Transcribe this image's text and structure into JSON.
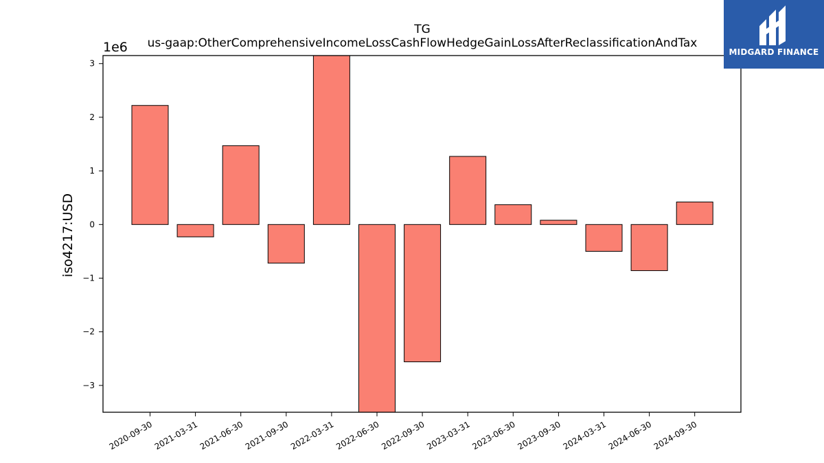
{
  "chart_data": {
    "type": "bar",
    "title": "TG",
    "subtitle": "us-gaap:OtherComprehensiveIncomeLossCashFlowHedgeGainLossAfterReclassificationAndTax",
    "ylabel": "iso4217:USD",
    "scale_label": "1e6",
    "categories": [
      "2020-09-30",
      "2021-03-31",
      "2021-06-30",
      "2021-09-30",
      "2022-03-31",
      "2022-06-30",
      "2022-09-30",
      "2023-03-31",
      "2023-06-30",
      "2023-09-30",
      "2024-03-31",
      "2024-06-30",
      "2024-09-30"
    ],
    "values": [
      2220000,
      -230000,
      1470000,
      -720000,
      3300000,
      -3700000,
      -2560000,
      1270000,
      370000,
      80000,
      -500000,
      -860000,
      420000
    ],
    "ylim": [
      -3.5,
      3.15
    ],
    "yticks": [
      -3,
      -2,
      -1,
      0,
      1,
      2,
      3
    ],
    "ytick_labels": [
      "−3",
      "−2",
      "−1",
      "0",
      "1",
      "2",
      "3"
    ],
    "bar_color": "#fa8072",
    "bar_edge_color": "#000000",
    "grid": false
  },
  "logo": {
    "text": "MIDGARD FINANCE",
    "background": "#2a5caa"
  }
}
